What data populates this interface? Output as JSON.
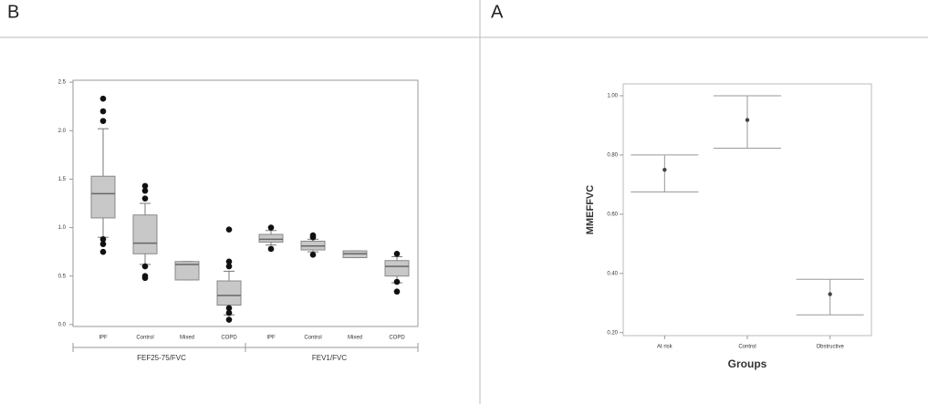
{
  "chart_data": [
    {
      "type": "box",
      "panel": "B",
      "categories": [
        "IPF",
        "Control",
        "Mixed",
        "COPD",
        "IPF",
        "Control",
        "Mixed",
        "COPD"
      ],
      "group_labels": [
        "FEF25-75/FVC",
        "FEV1/FVC"
      ],
      "boxes": [
        {
          "whisker_low": 0.9,
          "q1": 1.1,
          "median": 1.35,
          "q3": 1.53,
          "whisker_high": 2.02,
          "outliers": [
            2.33,
            2.2,
            2.1,
            0.88,
            0.83,
            0.75
          ]
        },
        {
          "whisker_low": 0.62,
          "q1": 0.73,
          "median": 0.84,
          "q3": 1.13,
          "whisker_high": 1.25,
          "outliers": [
            1.43,
            1.38,
            1.3,
            0.6,
            0.5,
            0.48
          ]
        },
        {
          "whisker_low": 0.46,
          "q1": 0.46,
          "median": 0.62,
          "q3": 0.65,
          "whisker_high": 0.65,
          "outliers": []
        },
        {
          "whisker_low": 0.1,
          "q1": 0.2,
          "median": 0.3,
          "q3": 0.45,
          "whisker_high": 0.55,
          "outliers": [
            0.98,
            0.65,
            0.6,
            0.17,
            0.12,
            0.05
          ]
        },
        {
          "whisker_low": 0.82,
          "q1": 0.85,
          "median": 0.88,
          "q3": 0.93,
          "whisker_high": 0.97,
          "outliers": [
            1.0,
            0.78
          ]
        },
        {
          "whisker_low": 0.75,
          "q1": 0.77,
          "median": 0.81,
          "q3": 0.86,
          "whisker_high": 0.88,
          "outliers": [
            0.92,
            0.9,
            0.72
          ]
        },
        {
          "whisker_low": 0.69,
          "q1": 0.69,
          "median": 0.73,
          "q3": 0.76,
          "whisker_high": 0.76,
          "outliers": []
        },
        {
          "whisker_low": 0.43,
          "q1": 0.5,
          "median": 0.6,
          "q3": 0.66,
          "whisker_high": 0.7,
          "outliers": [
            0.73,
            0.44,
            0.34
          ]
        }
      ],
      "ylim": [
        -0.02,
        2.52
      ],
      "yticks": [
        {
          "value": 0,
          "label": "0.0"
        },
        {
          "value": 0.5,
          "label": "0.5"
        },
        {
          "value": 1,
          "label": "1.0"
        },
        {
          "value": 1.5,
          "label": "1.5"
        },
        {
          "value": 2,
          "label": "2.0"
        },
        {
          "value": 2.5,
          "label": "2.5"
        }
      ],
      "color": "#c8c8c8"
    },
    {
      "type": "errorbar",
      "panel": "A",
      "categories": [
        "At risk",
        "Control",
        "Obstructive"
      ],
      "values": [
        0.75,
        0.918,
        0.33
      ],
      "upper": [
        0.8,
        1.0,
        0.38
      ],
      "lower": [
        0.675,
        0.823,
        0.26
      ],
      "x_label": "Groups",
      "y_label": "MMEFFVC",
      "ylim": [
        0.19,
        1.04
      ],
      "yticks": [
        {
          "value": 0.2,
          "label": "0.20"
        },
        {
          "value": 0.4,
          "label": "0.40"
        },
        {
          "value": 0.6,
          "label": "0.60"
        },
        {
          "value": 0.8,
          "label": "0.80"
        },
        {
          "value": 1,
          "label": "1.00"
        }
      ],
      "color": "#444"
    }
  ]
}
